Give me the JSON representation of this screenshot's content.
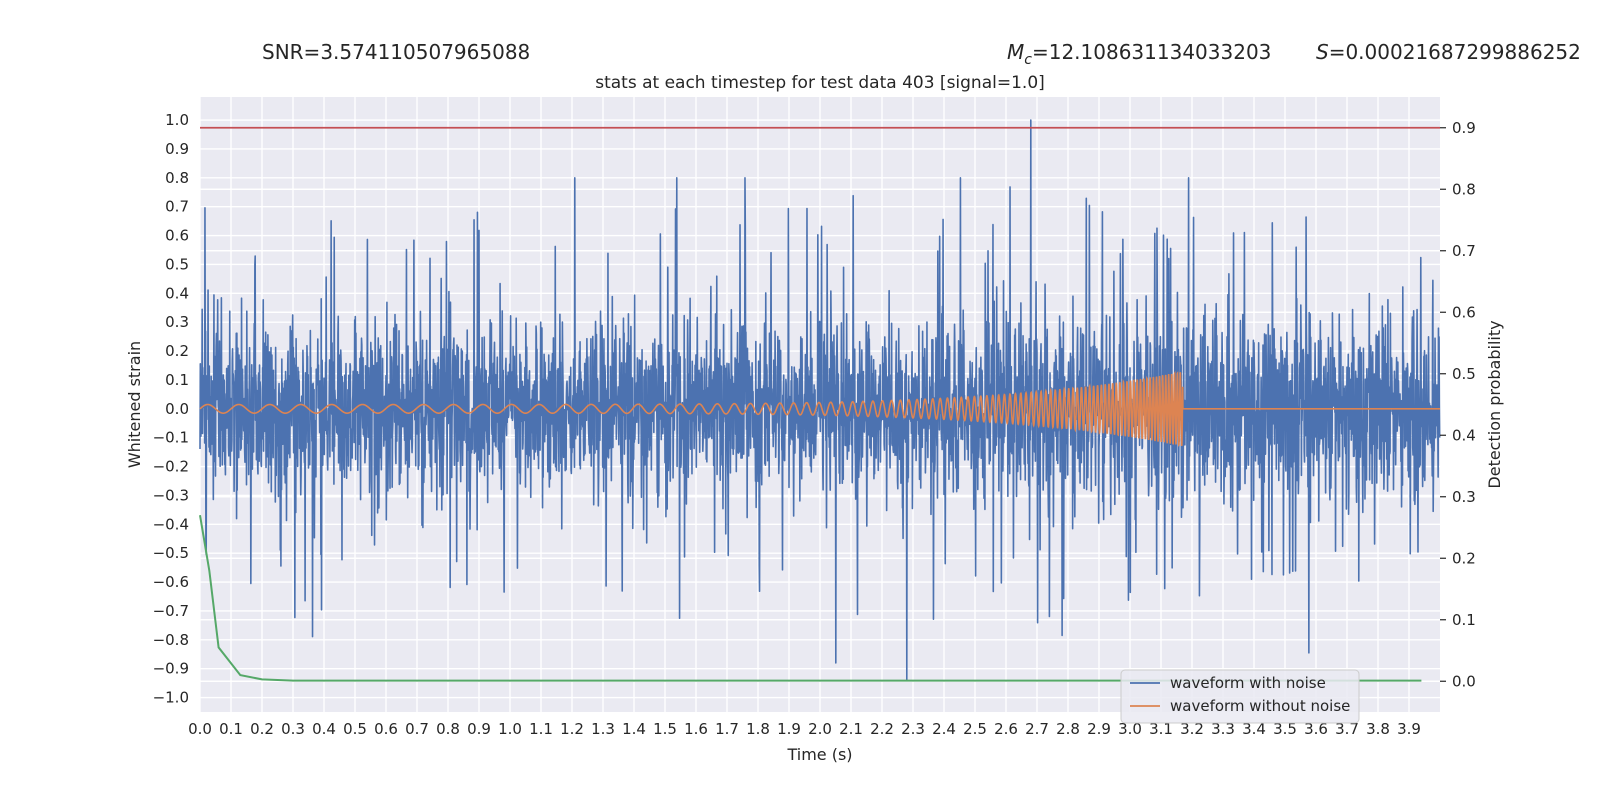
{
  "header": {
    "snr_label": "SNR=",
    "snr_value": "3.574110507965088",
    "mc_symbol": "M",
    "mc_sub": "c",
    "mc_value": "=12.108631134033203",
    "s_symbol": "S",
    "s_value": "=0.00021687299886252"
  },
  "chart_data": {
    "type": "line",
    "title": "stats at each timestep for test data 403 [signal=1.0]",
    "xlabel": "Time (s)",
    "ylabel": "Whitened strain",
    "y2label": "Detection probability",
    "xlim": [
      0.0,
      4.0
    ],
    "ylim": [
      -1.05,
      1.08
    ],
    "y2lim": [
      -0.05,
      0.95
    ],
    "x_ticks": [
      "0.0",
      "0.1",
      "0.2",
      "0.3",
      "0.4",
      "0.5",
      "0.6",
      "0.7",
      "0.8",
      "0.9",
      "1.0",
      "1.1",
      "1.2",
      "1.3",
      "1.4",
      "1.5",
      "1.6",
      "1.7",
      "1.8",
      "1.9",
      "2.0",
      "2.1",
      "2.2",
      "2.3",
      "2.4",
      "2.5",
      "2.6",
      "2.7",
      "2.8",
      "2.9",
      "3.0",
      "3.1",
      "3.2",
      "3.3",
      "3.4",
      "3.5",
      "3.6",
      "3.7",
      "3.8",
      "3.9"
    ],
    "y_ticks": [
      "1.0",
      "0.9",
      "0.8",
      "0.7",
      "0.6",
      "0.5",
      "0.4",
      "0.3",
      "0.2",
      "0.1",
      "0.0",
      "−0.1",
      "−0.2",
      "−0.3",
      "−0.4",
      "−0.5",
      "−0.6",
      "−0.7",
      "−0.8",
      "−0.9",
      "−1.0"
    ],
    "y2_ticks": [
      "0.9",
      "0.8",
      "0.7",
      "0.6",
      "0.5",
      "0.4",
      "0.3",
      "0.2",
      "0.1",
      "0.0"
    ],
    "grid": true,
    "legend_position": "bottom-right",
    "series": [
      {
        "name": "waveform with noise",
        "axis": "left",
        "color": "#4c72b0",
        "description_values": {
          "envelope_max": 1.0,
          "envelope_min": -0.94,
          "peak_x": 2.68,
          "peak_y": 1.0,
          "min_x": 2.28,
          "min_y": -0.94
        }
      },
      {
        "name": "waveform without noise",
        "axis": "left",
        "color": "#dd8452",
        "chirp": {
          "start_x": 0.0,
          "merger_x": 3.17,
          "start_amplitude": 0.015,
          "merger_amplitude": 0.13,
          "start_frequency_hz": 10,
          "merger_frequency_hz": 110
        }
      },
      {
        "name": "detection probability",
        "axis": "right",
        "color": "#55a868",
        "x": [
          0.0,
          0.03,
          0.06,
          0.13,
          0.2,
          0.3,
          0.5,
          1.0,
          2.0,
          3.0,
          3.94
        ],
        "y": [
          0.27,
          0.18,
          0.055,
          0.01,
          0.003,
          0.001,
          0.001,
          0.001,
          0.001,
          0.001,
          0.001
        ]
      },
      {
        "name": "threshold",
        "axis": "right",
        "color": "#c44e52",
        "x": [
          0.0,
          4.0
        ],
        "y": [
          0.9,
          0.9
        ]
      }
    ]
  }
}
